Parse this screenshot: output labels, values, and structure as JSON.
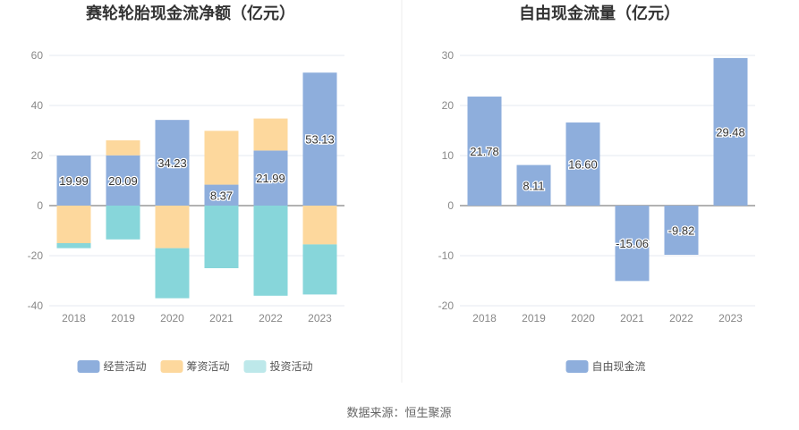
{
  "chart_data": [
    {
      "type": "bar",
      "stacked": true,
      "title": "赛轮轮胎现金流净额（亿元）",
      "categories": [
        "2018",
        "2019",
        "2020",
        "2021",
        "2022",
        "2023"
      ],
      "ylim": [
        -40,
        60
      ],
      "yticks": [
        "60",
        "40",
        "20",
        "0",
        "-20",
        "-40"
      ],
      "grid": true,
      "legend_position": "bottom",
      "series": [
        {
          "name": "经营活动",
          "color": "#8eaedc",
          "values": [
            19.99,
            20.09,
            34.23,
            8.37,
            21.99,
            53.13
          ],
          "labels": [
            "19.99",
            "20.09",
            "34.23",
            "8.37",
            "21.99",
            "53.13"
          ]
        },
        {
          "name": "筹资活动",
          "color": "#fdd89d",
          "values": [
            -15.0,
            6.0,
            -17.0,
            21.5,
            12.8,
            -15.5
          ]
        },
        {
          "name": "投资活动",
          "color": "#87d6da",
          "legend_color": "#bde8ea",
          "values": [
            -2.0,
            -13.5,
            -20.0,
            -25.0,
            -36.0,
            -20.0
          ]
        }
      ]
    },
    {
      "type": "bar",
      "title": "自由现金流量（亿元）",
      "categories": [
        "2018",
        "2019",
        "2020",
        "2021",
        "2022",
        "2023"
      ],
      "ylim": [
        -20,
        30
      ],
      "yticks": [
        "30",
        "20",
        "10",
        "0",
        "-10",
        "-20"
      ],
      "grid": true,
      "legend_position": "bottom",
      "series": [
        {
          "name": "自由现金流",
          "color": "#8eaedc",
          "values": [
            21.78,
            8.11,
            16.6,
            -15.06,
            -9.82,
            29.48
          ],
          "labels": [
            "21.78",
            "8.11",
            "16.60",
            "-15.06",
            "-9.82",
            "29.48"
          ]
        }
      ]
    }
  ],
  "source_text": "数据来源：恒生聚源"
}
